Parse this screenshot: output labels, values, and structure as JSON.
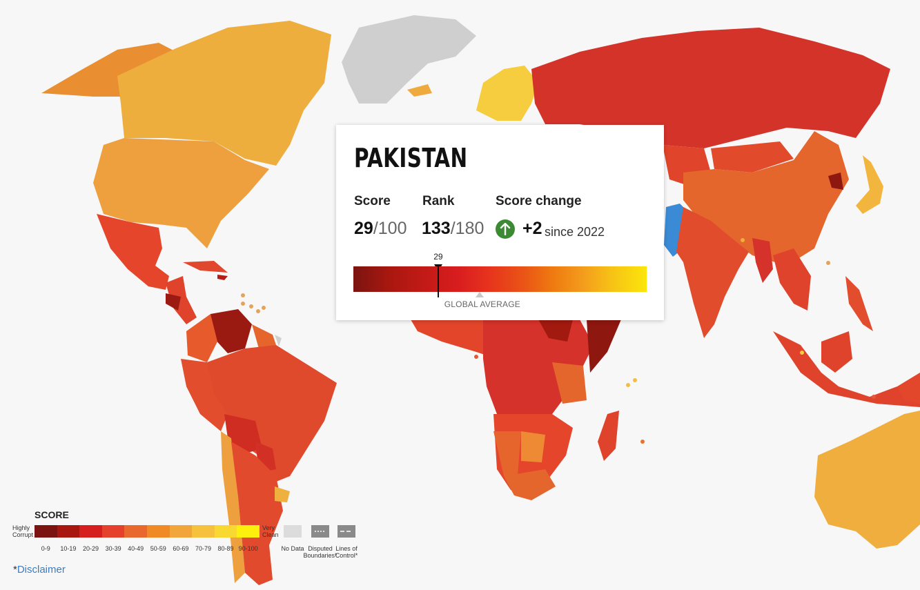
{
  "country": {
    "name": "PAKISTAN",
    "score_label": "Score",
    "score": "29",
    "score_max": "/100",
    "rank_label": "Rank",
    "rank": "133",
    "rank_max": "/180",
    "change_label": "Score change",
    "change": "+2",
    "change_since": "since 2022",
    "change_direction_icon": "arrow-up-icon",
    "gauge_marker": "29",
    "gauge_score_value": 29,
    "global_average_value": 43,
    "global_average_label": "GLOBAL AVERAGE",
    "highlight_color": "#3a8ad6"
  },
  "legend": {
    "title": "SCORE",
    "low_label": "Highly Corrupt",
    "high_label": "Very Clean",
    "bins": [
      {
        "label": "0-9",
        "color": "#7b1411"
      },
      {
        "label": "10-19",
        "color": "#a8170f"
      },
      {
        "label": "20-29",
        "color": "#d71e1e"
      },
      {
        "label": "30-39",
        "color": "#e4402b"
      },
      {
        "label": "40-49",
        "color": "#e8682d"
      },
      {
        "label": "50-59",
        "color": "#ef8a24"
      },
      {
        "label": "60-69",
        "color": "#f2a53a"
      },
      {
        "label": "70-79",
        "color": "#f6c13c"
      },
      {
        "label": "80-89",
        "color": "#f9d931"
      },
      {
        "label": "90-100",
        "color": "#fdf00d"
      }
    ],
    "no_data_label": "No Data",
    "no_data_color": "#d9d9d9",
    "disputed_label": "Disputed Boundaries*",
    "lines_label": "Lines of Control*"
  },
  "footer": {
    "asterisk": "*",
    "disclaimer": "Disclaimer"
  }
}
